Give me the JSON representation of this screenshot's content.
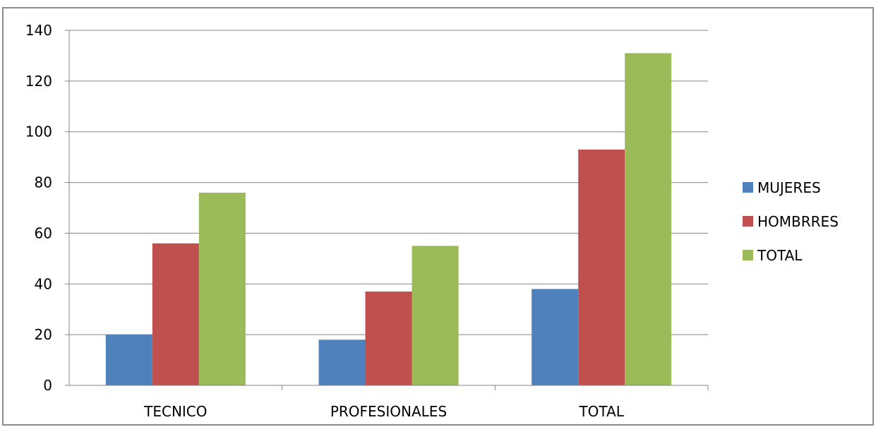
{
  "chart_data": {
    "type": "bar",
    "categories": [
      "TECNICO",
      "PROFESIONALES",
      "TOTAL"
    ],
    "series": [
      {
        "name": "MUJERES",
        "values": [
          20,
          18,
          38
        ],
        "color": "#4f81bd"
      },
      {
        "name": "HOMBRRES",
        "values": [
          56,
          37,
          93
        ],
        "color": "#c0504d"
      },
      {
        "name": "TOTAL",
        "values": [
          76,
          55,
          131
        ],
        "color": "#9bbb59"
      }
    ],
    "title": "",
    "xlabel": "",
    "ylabel": "",
    "ylim": [
      0,
      140
    ],
    "yticks": [
      "0",
      "20",
      "40",
      "60",
      "80",
      "100",
      "120",
      "140"
    ],
    "grid": true,
    "legend_position": "right"
  }
}
